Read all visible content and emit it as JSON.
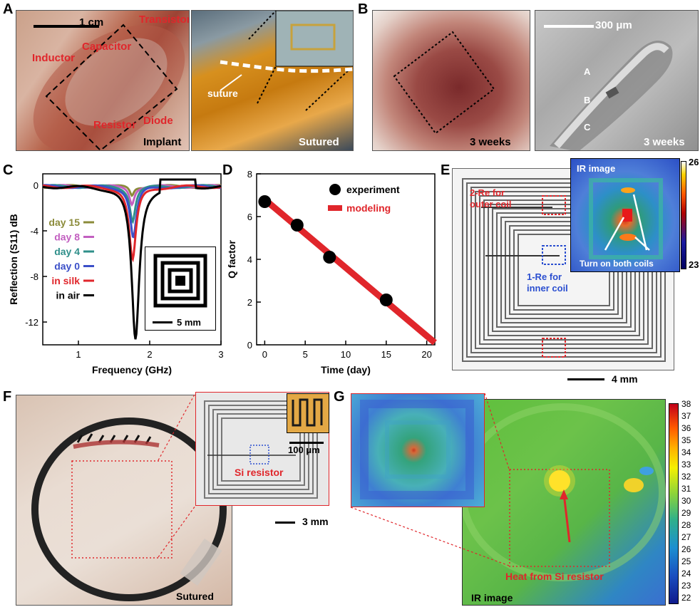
{
  "panels": {
    "A": {
      "label": "A",
      "scale": "1 cm",
      "inductor": "Inductor",
      "capacitor": "Capacitor",
      "transistor": "Transistor",
      "resistor": "Resistor",
      "diode": "Diode",
      "implant": "Implant",
      "suture": "suture",
      "sutured": "Sutured"
    },
    "B": {
      "label": "B",
      "weeks_left": "3 weeks",
      "scale": "300 μm",
      "layer_a": "A",
      "layer_b": "B",
      "layer_c": "C",
      "weeks_right": "3 weeks"
    },
    "C": {
      "label": "C",
      "inset_scale": "5 mm"
    },
    "D": {
      "label": "D"
    },
    "E": {
      "label": "E",
      "outer_label_1": "2-Re for",
      "outer_label_2": "outer coil",
      "inner_label_1": "1-Re for",
      "inner_label_2": "inner coil",
      "ir_title": "IR image",
      "ir_caption": "Turn on both coils",
      "scale_top": "26",
      "scale_bottom": "23",
      "scale_bar": "4 mm"
    },
    "F": {
      "label": "F",
      "sutured": "Sutured",
      "si_resistor": "Si resistor",
      "inset_scale": "100 μm",
      "scale_bar": "3 mm"
    },
    "G": {
      "label": "G",
      "ir_image": "IR image",
      "heat_label": "Heat from Si resistor",
      "colorbar_ticks": [
        "38",
        "37",
        "36",
        "35",
        "34",
        "33",
        "32",
        "31",
        "30",
        "29",
        "28",
        "27",
        "26",
        "25",
        "24",
        "23",
        "22"
      ]
    }
  },
  "chart_data": [
    {
      "type": "line",
      "panel": "C",
      "xlabel": "Frequency (GHz)",
      "ylabel": "Reflection (S11) dB",
      "xlim": [
        0.5,
        3
      ],
      "ylim": [
        -14,
        1
      ],
      "xticks": [
        "1",
        "2",
        "3"
      ],
      "yticks": [
        "0",
        "-4",
        "-8",
        "-12"
      ],
      "series": [
        {
          "name": "day 15",
          "color": "#8b8b3a",
          "min_x": 1.75,
          "min_y": -0.8
        },
        {
          "name": "day 8",
          "color": "#c25fc0",
          "min_x": 1.75,
          "min_y": -1.5
        },
        {
          "name": "day 4",
          "color": "#2f8f8a",
          "min_x": 1.76,
          "min_y": -3.0
        },
        {
          "name": "day 0",
          "color": "#3b4fc8",
          "min_x": 1.77,
          "min_y": -4.5
        },
        {
          "name": "in silk",
          "color": "#e0262b",
          "min_x": 1.76,
          "min_y": -6.5
        },
        {
          "name": "in air",
          "color": "#000000",
          "min_x": 1.8,
          "min_y": -13.5
        }
      ]
    },
    {
      "type": "scatter",
      "panel": "D",
      "xlabel": "Time (day)",
      "ylabel": "Q factor",
      "xlim": [
        -1,
        21
      ],
      "ylim": [
        0,
        8
      ],
      "xticks": [
        "0",
        "5",
        "10",
        "15",
        "20"
      ],
      "yticks": [
        "0",
        "2",
        "4",
        "6",
        "8"
      ],
      "series": [
        {
          "name": "experiment",
          "type": "scatter",
          "color": "#000000",
          "x": [
            0,
            4,
            8,
            15
          ],
          "y": [
            6.7,
            5.6,
            4.1,
            2.1
          ]
        },
        {
          "name": "modeling",
          "type": "line",
          "color": "#e0262b",
          "x": [
            0,
            21
          ],
          "y": [
            6.8,
            0.1
          ]
        }
      ]
    }
  ]
}
